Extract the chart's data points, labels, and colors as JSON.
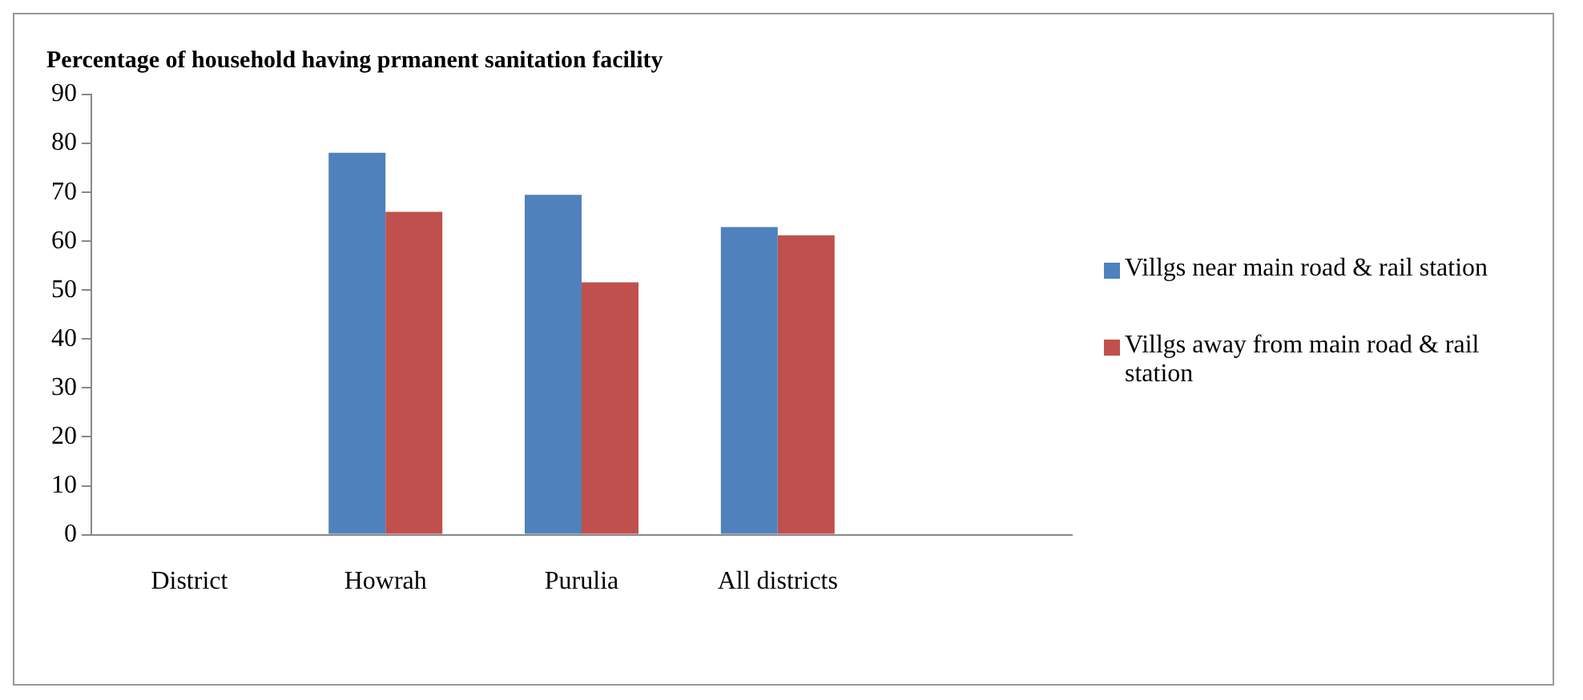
{
  "chart_data": {
    "type": "bar",
    "title": "Percentage of household having prmanent sanitation facility",
    "categories": [
      "District",
      "Howrah",
      "Purulia",
      "All districts",
      null
    ],
    "series": [
      {
        "name": "Villgs near main road & rail station",
        "color": "#4f81bd",
        "values": [
          null,
          78.1,
          69.5,
          62.9,
          null
        ]
      },
      {
        "name": "Villgs away from main road & rail station",
        "color": "#c0504d",
        "values": [
          null,
          66.0,
          51.6,
          61.2,
          null
        ]
      }
    ],
    "ylim": [
      0,
      90
    ],
    "yticks": [
      0,
      10,
      20,
      30,
      40,
      50,
      60,
      70,
      80,
      90
    ],
    "grid": false,
    "legend": "right"
  }
}
